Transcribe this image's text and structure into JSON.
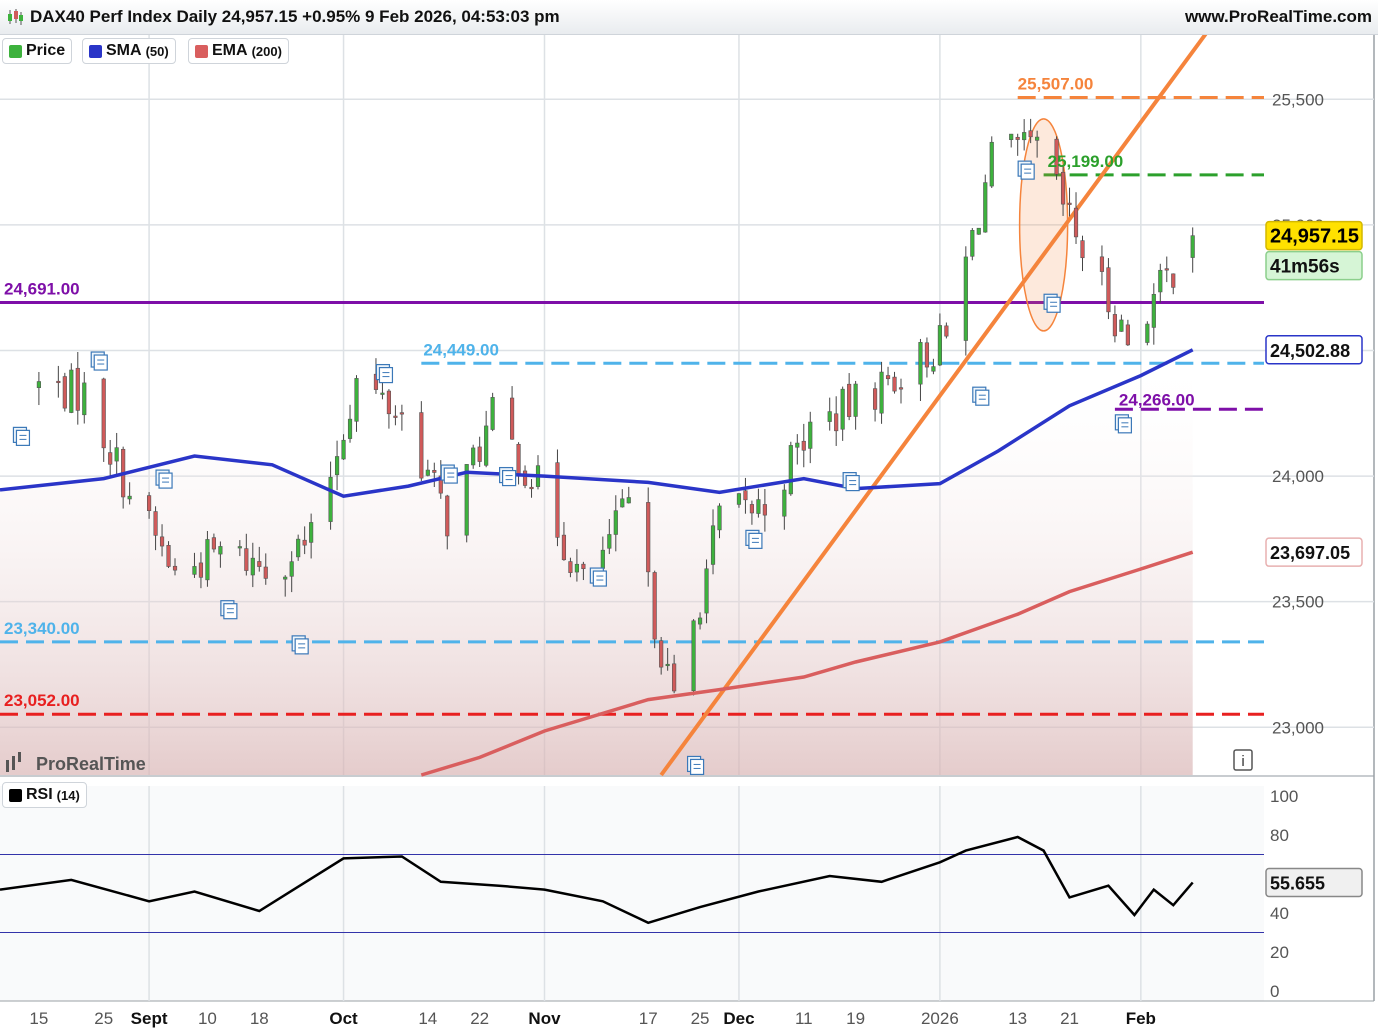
{
  "header": {
    "title": "DAX40 Perf Index Daily 24,957.15 +0.95% 9 Feb 2026, 04:53:03 pm",
    "site": "www.ProRealTime.com"
  },
  "legend": {
    "price_label": "Price",
    "sma_label": "SMA",
    "sma_param": "(50)",
    "ema_label": "EMA",
    "ema_param": "(200)",
    "rsi_label": "RSI",
    "rsi_param": "(14)"
  },
  "watermark": "ProRealTime",
  "info_icon": "info-icon",
  "tags": {
    "last_price": "24,957.15",
    "countdown": "41m56s",
    "sma_value": "24,502.88",
    "ema_value": "23,697.05",
    "rsi_value": "55.655"
  },
  "colors": {
    "candle_up": "#3db23d",
    "candle_down": "#d05a5a",
    "sma": "#2a35c8",
    "ema": "#d95e5e",
    "rsi": "#000000",
    "trendline": "#f5843c",
    "resistance_purple": "#7e0fa8",
    "level_blue": "#4fb3ea",
    "level_red": "#e82020",
    "level_green": "#2ca02c",
    "level_orange": "#f5843c",
    "last_tag_bg": "#ffe100",
    "countdown_bg": "#d6f5d6"
  },
  "chart_data": [
    {
      "type": "candlestick",
      "title": "DAX40 Perf Index Daily",
      "x_tick_labels": [
        "15",
        "25",
        "Sept",
        "10",
        "18",
        "Oct",
        "14",
        "22",
        "Nov",
        "17",
        "25",
        "Dec",
        "11",
        "19",
        "2026",
        "13",
        "21",
        "Feb"
      ],
      "x_tick_dates": [
        "2025-08-15",
        "2025-08-25",
        "2025-09-01",
        "2025-09-10",
        "2025-09-18",
        "2025-10-01",
        "2025-10-14",
        "2025-10-22",
        "2025-11-01",
        "2025-11-17",
        "2025-11-25",
        "2025-12-01",
        "2025-12-11",
        "2025-12-19",
        "2026-01-01",
        "2026-01-13",
        "2026-01-21",
        "2026-02-01"
      ],
      "y_tick_labels": [
        "23,000",
        "23,500",
        "24,000",
        "24,500",
        "25,000",
        "25,500"
      ],
      "y_ticks": [
        23000,
        23500,
        24000,
        24500,
        25000,
        25500
      ],
      "ylim": [
        22810,
        25760
      ],
      "xlim": [
        "2025-08-09",
        "2026-02-20"
      ],
      "last_close": 24957.15,
      "change_pct": 0.95,
      "candles_approx_closes": [
        {
          "date": "2025-08-15",
          "close": 24360
        },
        {
          "date": "2025-08-22",
          "close": 24330
        },
        {
          "date": "2025-08-29",
          "close": 23940
        },
        {
          "date": "2025-09-05",
          "close": 23610
        },
        {
          "date": "2025-09-12",
          "close": 23700
        },
        {
          "date": "2025-09-19",
          "close": 23640
        },
        {
          "date": "2025-09-26",
          "close": 23740
        },
        {
          "date": "2025-10-03",
          "close": 24380
        },
        {
          "date": "2025-10-10",
          "close": 24240
        },
        {
          "date": "2025-10-17",
          "close": 23830
        },
        {
          "date": "2025-10-24",
          "close": 24230
        },
        {
          "date": "2025-10-31",
          "close": 23960
        },
        {
          "date": "2025-11-07",
          "close": 23570
        },
        {
          "date": "2025-11-14",
          "close": 23880
        },
        {
          "date": "2025-11-21",
          "close": 23090
        },
        {
          "date": "2025-11-28",
          "close": 23840
        },
        {
          "date": "2025-12-05",
          "close": 23880
        },
        {
          "date": "2025-12-12",
          "close": 24190
        },
        {
          "date": "2025-12-19",
          "close": 24290
        },
        {
          "date": "2026-01-02",
          "close": 24540
        },
        {
          "date": "2026-01-09",
          "close": 25260
        },
        {
          "date": "2026-01-16",
          "close": 25300
        },
        {
          "date": "2026-01-23",
          "close": 24900
        },
        {
          "date": "2026-01-30",
          "close": 24540
        },
        {
          "date": "2026-02-09",
          "close": 24957
        }
      ],
      "sma_50": [
        {
          "date": "2025-08-09",
          "value": 23945
        },
        {
          "date": "2025-08-25",
          "value": 23990
        },
        {
          "date": "2025-09-08",
          "value": 24080
        },
        {
          "date": "2025-09-20",
          "value": 24045
        },
        {
          "date": "2025-10-01",
          "value": 23920
        },
        {
          "date": "2025-10-11",
          "value": 23960
        },
        {
          "date": "2025-10-20",
          "value": 24015
        },
        {
          "date": "2025-11-01",
          "value": 24000
        },
        {
          "date": "2025-11-17",
          "value": 23975
        },
        {
          "date": "2025-11-28",
          "value": 23935
        },
        {
          "date": "2025-12-11",
          "value": 23990
        },
        {
          "date": "2025-12-19",
          "value": 23950
        },
        {
          "date": "2026-01-01",
          "value": 23970
        },
        {
          "date": "2026-01-10",
          "value": 24100
        },
        {
          "date": "2026-01-21",
          "value": 24280
        },
        {
          "date": "2026-02-01",
          "value": 24400
        },
        {
          "date": "2026-02-09",
          "value": 24502.88
        }
      ],
      "ema_200": [
        {
          "date": "2025-10-13",
          "value": 22810
        },
        {
          "date": "2025-10-22",
          "value": 22880
        },
        {
          "date": "2025-11-01",
          "value": 22985
        },
        {
          "date": "2025-11-17",
          "value": 23110
        },
        {
          "date": "2025-11-28",
          "value": 23150
        },
        {
          "date": "2025-12-11",
          "value": 23200
        },
        {
          "date": "2025-12-19",
          "value": 23260
        },
        {
          "date": "2026-01-01",
          "value": 23340
        },
        {
          "date": "2026-01-13",
          "value": 23450
        },
        {
          "date": "2026-01-21",
          "value": 23540
        },
        {
          "date": "2026-02-01",
          "value": 23630
        },
        {
          "date": "2026-02-09",
          "value": 23697.05
        }
      ],
      "levels": [
        {
          "value": 25507.0,
          "label": "25,507.00",
          "color": "orange",
          "style": "dashed",
          "from": "2026-01-13"
        },
        {
          "value": 25199.0,
          "label": "25,199.00",
          "color": "green",
          "style": "dashed",
          "from": "2026-01-17"
        },
        {
          "value": 24691.0,
          "label": "24,691.00",
          "color": "purple",
          "style": "solid",
          "from": "2025-08-09"
        },
        {
          "value": 24449.0,
          "label": "24,449.00",
          "color": "blue",
          "style": "dashed",
          "from": "2025-10-13"
        },
        {
          "value": 24266.0,
          "label": "24,266.00",
          "color": "purple",
          "style": "dashed",
          "from": "2026-01-28"
        },
        {
          "value": 23340.0,
          "label": "23,340.00",
          "color": "blue",
          "style": "dashed",
          "from": "2025-08-09"
        },
        {
          "value": 23052.0,
          "label": "23,052.00",
          "color": "red",
          "style": "dashed",
          "from": "2025-08-09"
        }
      ],
      "trendline": {
        "from": {
          "date": "2025-11-19",
          "value": 22810
        },
        "to": {
          "date": "2026-02-11",
          "value": 25760
        }
      },
      "annotations": [
        "ellipse around mid-January top (2026-01-13 to 2026-01-21)"
      ],
      "grid": true,
      "legend": [
        "Price",
        "SMA (50)",
        "EMA (200)"
      ],
      "legend_position": "top-left"
    },
    {
      "type": "line",
      "title": "RSI (14)",
      "y_tick_labels": [
        "0",
        "20",
        "40",
        "60",
        "80",
        "100"
      ],
      "y_ticks": [
        0,
        20,
        40,
        60,
        80,
        100
      ],
      "ylim": [
        0,
        100
      ],
      "overbought": 70,
      "oversold": 30,
      "last_value": 55.655,
      "series": [
        {
          "name": "RSI (14)",
          "values": [
            {
              "date": "2025-08-09",
              "value": 52
            },
            {
              "date": "2025-08-20",
              "value": 57
            },
            {
              "date": "2025-09-01",
              "value": 46
            },
            {
              "date": "2025-09-08",
              "value": 51
            },
            {
              "date": "2025-09-18",
              "value": 41
            },
            {
              "date": "2025-10-01",
              "value": 68
            },
            {
              "date": "2025-10-10",
              "value": 69
            },
            {
              "date": "2025-10-16",
              "value": 56
            },
            {
              "date": "2025-10-25",
              "value": 54
            },
            {
              "date": "2025-11-01",
              "value": 52
            },
            {
              "date": "2025-11-10",
              "value": 46
            },
            {
              "date": "2025-11-17",
              "value": 35
            },
            {
              "date": "2025-11-25",
              "value": 43
            },
            {
              "date": "2025-12-04",
              "value": 51
            },
            {
              "date": "2025-12-15",
              "value": 59
            },
            {
              "date": "2025-12-23",
              "value": 56
            },
            {
              "date": "2026-01-01",
              "value": 66
            },
            {
              "date": "2026-01-05",
              "value": 72
            },
            {
              "date": "2026-01-13",
              "value": 79
            },
            {
              "date": "2026-01-17",
              "value": 72
            },
            {
              "date": "2026-01-21",
              "value": 48
            },
            {
              "date": "2026-01-27",
              "value": 54
            },
            {
              "date": "2026-01-31",
              "value": 39
            },
            {
              "date": "2026-02-03",
              "value": 52
            },
            {
              "date": "2026-02-06",
              "value": 44
            },
            {
              "date": "2026-02-09",
              "value": 55.655
            }
          ]
        }
      ]
    }
  ]
}
